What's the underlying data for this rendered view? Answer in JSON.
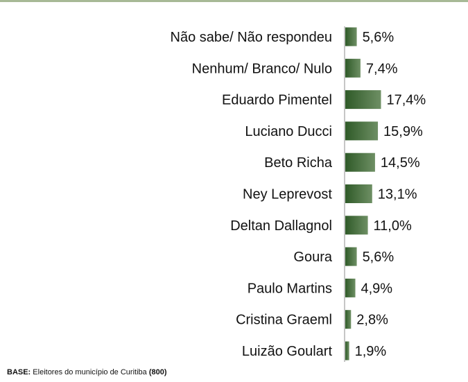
{
  "chart_data": {
    "type": "bar",
    "orientation": "horizontal",
    "categories": [
      "Não sabe/ Não respondeu",
      "Nenhum/ Branco/ Nulo",
      "Eduardo Pimentel",
      "Luciano Ducci",
      "Beto Richa",
      "Ney Leprevost",
      "Deltan Dallagnol",
      "Goura",
      "Paulo Martins",
      "Cristina Graeml",
      "Luizão Goulart"
    ],
    "values": [
      5.6,
      7.4,
      17.4,
      15.9,
      14.5,
      13.1,
      11.0,
      5.6,
      4.9,
      2.8,
      1.9
    ],
    "value_labels": [
      "5,6%",
      "7,4%",
      "17,4%",
      "15,9%",
      "14,5%",
      "13,1%",
      "11,0%",
      "5,6%",
      "4,9%",
      "2,8%",
      "1,9%"
    ],
    "xlim": [
      0,
      20
    ],
    "grid": false,
    "bar_color_dark": "#2f5a28",
    "bar_color_light": "#6e8f64"
  },
  "footnote": {
    "base_label": "BASE:",
    "text": " Eleitores do município de Curitiba ",
    "count": "(800)"
  }
}
